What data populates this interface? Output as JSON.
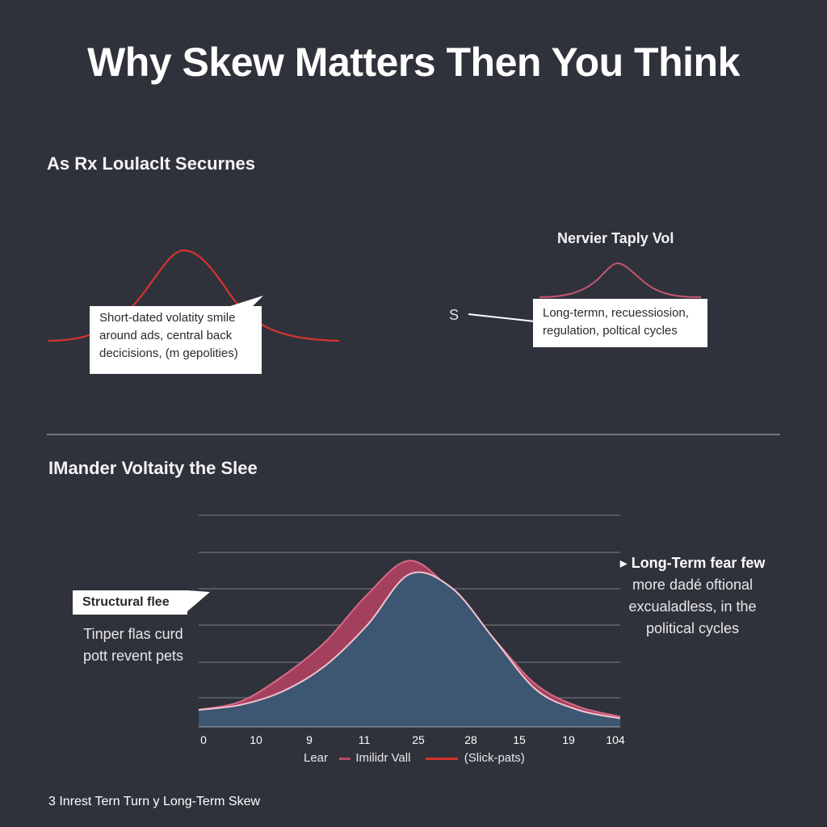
{
  "title": "Why Skew Matters Then You Think",
  "section1": {
    "heading": "As Rx Loulaclt Securnes",
    "left_callout": [
      "Short-dated volatity smile",
      "around ads, central back",
      "decicisions, (m gepolities)"
    ],
    "right_heading": "Nervier Taply Vol",
    "right_marker": "S",
    "right_callout": [
      "Long-termn, recuessiosion,",
      "regulation, poltical cycles"
    ]
  },
  "section2": {
    "heading": "IMander Voltaity the Slee",
    "left_tag": "Structural flee",
    "left_note": [
      "Tinper flas curd",
      "pott revent pets"
    ],
    "right_note_title": "Long-Term fear few",
    "right_note_lines": [
      "more dadé oftional",
      "excualadless, in the",
      "political cycles"
    ],
    "right_note_marker": "▸"
  },
  "chart_data": {
    "type": "area",
    "title": "",
    "xlabel": "",
    "ylabel": "",
    "x_tick_labels": [
      "0",
      "10",
      "9",
      "11",
      "25",
      "28",
      "15",
      "19",
      "104"
    ],
    "grid": true,
    "legend_placement": "bottom-center",
    "legend": [
      {
        "label": "Lear",
        "swatch": "none"
      },
      {
        "label": "Imilidr Vall",
        "swatch": "#b84a6a"
      },
      {
        "label": "(Slick-pats)",
        "swatch": "#d5332f"
      }
    ],
    "ylim": [
      0,
      100
    ],
    "series": [
      {
        "name": "Imilidr Vall",
        "color": "#a3405d",
        "values": [
          10,
          15,
          30,
          50,
          78,
          98,
          80,
          52,
          25,
          12,
          6
        ]
      },
      {
        "name": "(Slick-pats)",
        "color": "#3d5672",
        "values": [
          10,
          13,
          21,
          36,
          60,
          90,
          82,
          52,
          22,
          10,
          5
        ]
      }
    ]
  },
  "footer": "3 Inrest Tern Turn y Long-Term Skew",
  "colors": {
    "background": "#30323b",
    "red_curve": "#d5332f",
    "pink_curve": "#c4566f",
    "chart_fill": "#3d5672",
    "chart_top_fill": "#a3405d",
    "gridline": "#7b7e87"
  }
}
